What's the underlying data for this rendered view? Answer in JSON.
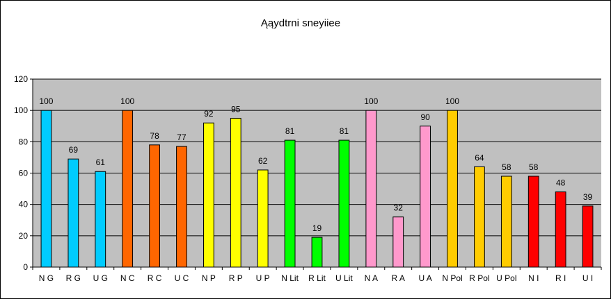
{
  "chart_data": {
    "type": "bar",
    "title": "Ąąydtrni sneyiiee",
    "xlabel": "",
    "ylabel": "",
    "ylim": [
      0,
      120
    ],
    "yticks": [
      0,
      20,
      40,
      60,
      80,
      100,
      120
    ],
    "grid": true,
    "legend": "none",
    "plot_background": "#c0c0c0",
    "categories": [
      "N G",
      "R G",
      "U G",
      "N C",
      "R C",
      "U C",
      "N P",
      "R P",
      "U P",
      "N Lit",
      "R Lit",
      "U Lit",
      "N A",
      "R A",
      "U A",
      "N Pol",
      "R Pol",
      "U Pol",
      "N I",
      "R I",
      "U I"
    ],
    "values": [
      100,
      69,
      61,
      100,
      78,
      77,
      92,
      95,
      62,
      81,
      19,
      81,
      100,
      32,
      90,
      100,
      64,
      58,
      58,
      48,
      39
    ],
    "colors": [
      "#00ccff",
      "#00ccff",
      "#00ccff",
      "#ff6600",
      "#ff6600",
      "#ff6600",
      "#ffff00",
      "#ffff00",
      "#ffff00",
      "#00ff00",
      "#00ff00",
      "#00ff00",
      "#ff99cc",
      "#ff99cc",
      "#ff99cc",
      "#ffcc00",
      "#ffcc00",
      "#ffcc00",
      "#ff0000",
      "#ff0000",
      "#ff0000"
    ]
  }
}
